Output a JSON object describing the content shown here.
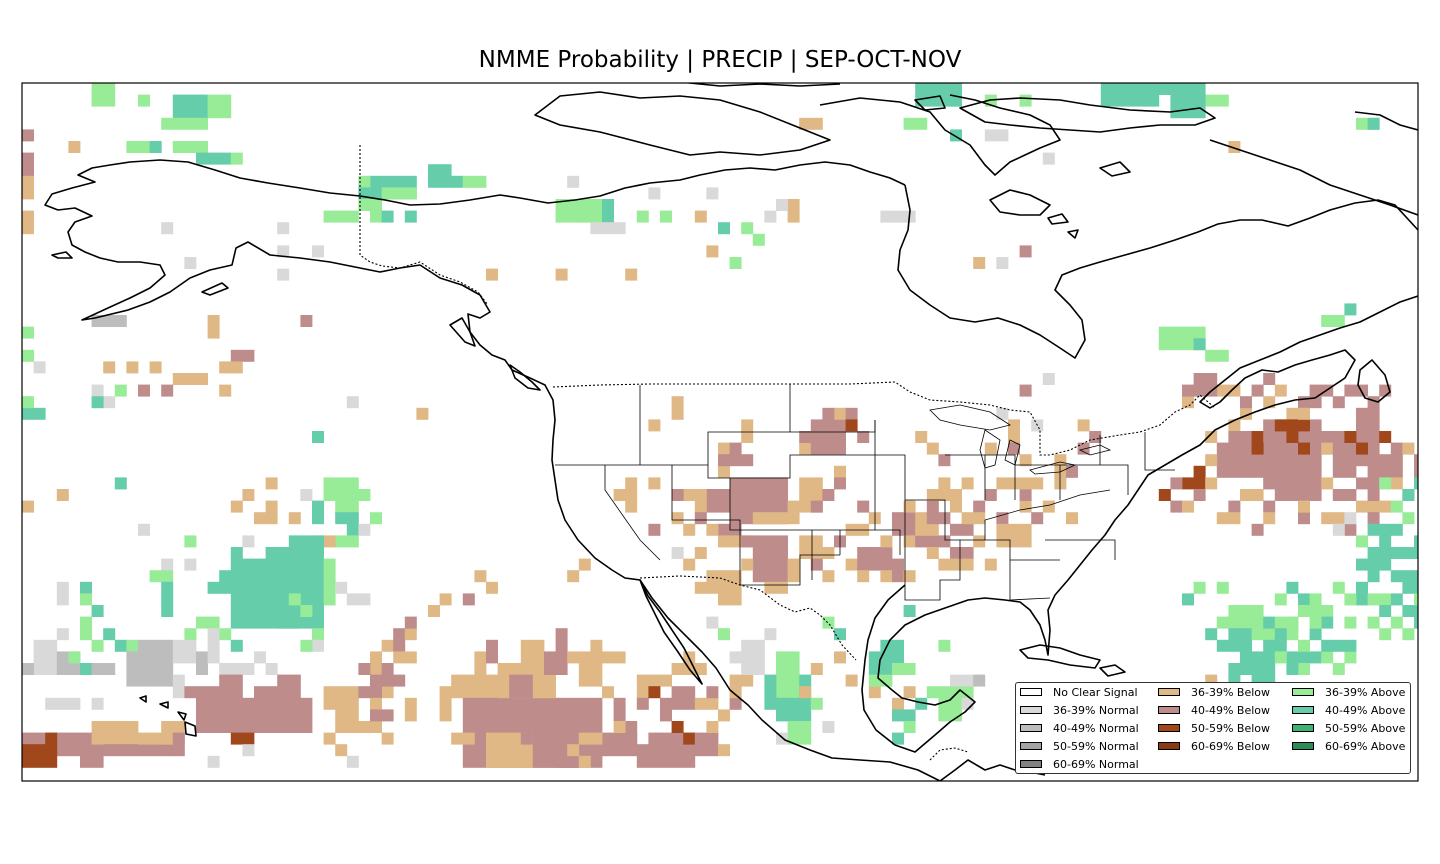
{
  "title": "NMME Probability | PRECIP | SEP-OCT-NOV",
  "palette": {
    "background": "#ffffff",
    "coast": "#000000",
    "normal_36_39": "#d9d9d9",
    "normal_40_49": "#bdbdbd",
    "normal_50_59": "#a3a3a3",
    "normal_60_69": "#828282",
    "below_36_39": "#dfb886",
    "below_40_49": "#bd8c8b",
    "below_50_59": "#a0471c",
    "below_60_69": "#8b3a17",
    "above_36_39": "#98ec98",
    "above_40_49": "#66cdaa",
    "above_50_59": "#3cb371",
    "above_60_69": "#2e8b57"
  },
  "legend": {
    "columns": [
      [
        {
          "label": "No Clear Signal",
          "color": "#ffffff"
        },
        {
          "label": "36-39% Normal",
          "color": "#d9d9d9"
        },
        {
          "label": "40-49% Normal",
          "color": "#bdbdbd"
        },
        {
          "label": "50-59% Normal",
          "color": "#a3a3a3"
        },
        {
          "label": "60-69% Normal",
          "color": "#828282"
        }
      ],
      [
        {
          "label": "36-39% Below",
          "color": "#dfb886"
        },
        {
          "label": "40-49% Below",
          "color": "#bd8c8b"
        },
        {
          "label": "50-59% Below",
          "color": "#a0471c"
        },
        {
          "label": "60-69% Below",
          "color": "#8b3a17"
        }
      ],
      [
        {
          "label": "36-39% Above",
          "color": "#98ec98"
        },
        {
          "label": "40-49% Above",
          "color": "#66cdaa"
        },
        {
          "label": "50-59% Above",
          "color": "#3cb371"
        },
        {
          "label": "60-69% Above",
          "color": "#2e8b57"
        }
      ]
    ]
  }
}
